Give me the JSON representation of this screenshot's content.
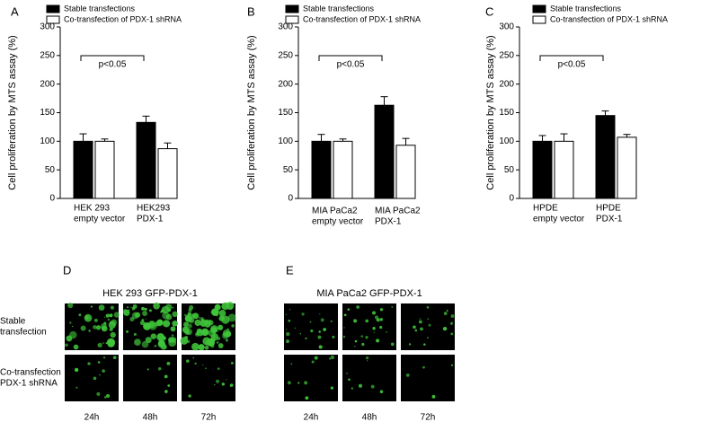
{
  "chart_data": [
    {
      "type": "bar",
      "panel": "A",
      "ylabel": "Cell proliferation by MTS assay (%)",
      "categories": [
        [
          "HEK 293",
          "empty vector"
        ],
        [
          "HEK293",
          "PDX-1"
        ]
      ],
      "series": [
        {
          "name": "Stable transfections",
          "color": "#000000",
          "values": [
            100,
            133
          ],
          "errors": [
            13,
            11
          ]
        },
        {
          "name": "Co-transfection of PDX-1 shRNA",
          "color": "#ffffff",
          "values": [
            100,
            87
          ],
          "errors": [
            4,
            10
          ]
        }
      ],
      "annotation": "p<0.05",
      "ylim": [
        0,
        300
      ],
      "yticks": [
        0,
        50,
        100,
        150,
        200,
        250,
        300
      ]
    },
    {
      "type": "bar",
      "panel": "B",
      "ylabel": "Cell proliferation by MTS assay (%)",
      "categories": [
        [
          "MIA PaCa2",
          "empty vector"
        ],
        [
          "MIA PaCa2",
          "PDX-1"
        ]
      ],
      "series": [
        {
          "name": "Stable transfections",
          "color": "#000000",
          "values": [
            100,
            163
          ],
          "errors": [
            12,
            15
          ]
        },
        {
          "name": "Co-transfection of PDX-1 shRNA",
          "color": "#ffffff",
          "values": [
            100,
            93
          ],
          "errors": [
            4,
            12
          ]
        }
      ],
      "annotation": "p<0.05",
      "ylim": [
        0,
        300
      ],
      "yticks": [
        0,
        50,
        100,
        150,
        200,
        250,
        300
      ]
    },
    {
      "type": "bar",
      "panel": "C",
      "ylabel": "Cell proliferation by MTS assay (%)",
      "categories": [
        [
          "HPDE",
          "empty vector"
        ],
        [
          "HPDE",
          "PDX-1"
        ]
      ],
      "series": [
        {
          "name": "Stable transfections",
          "color": "#000000",
          "values": [
            100,
            145
          ],
          "errors": [
            10,
            8
          ]
        },
        {
          "name": "Co-transfection of PDX-1 shRNA",
          "color": "#ffffff",
          "values": [
            100,
            107
          ],
          "errors": [
            13,
            5
          ]
        }
      ],
      "annotation": "p<0.05",
      "ylim": [
        0,
        300
      ],
      "yticks": [
        0,
        50,
        100,
        150,
        200,
        250,
        300
      ]
    }
  ],
  "panels": [
    {
      "letter": "D",
      "title": "HEK 293 GFP-PDX-1",
      "rows": [
        [
          "Stable",
          "transfection"
        ],
        [
          "Co-transfection",
          "PDX-1 shRNA"
        ]
      ],
      "columns": [
        "24h",
        "48h",
        "72h"
      ]
    },
    {
      "letter": "E",
      "title": "MIA PaCa2 GFP-PDX-1",
      "columns": [
        "24h",
        "48h",
        "72h"
      ]
    }
  ]
}
